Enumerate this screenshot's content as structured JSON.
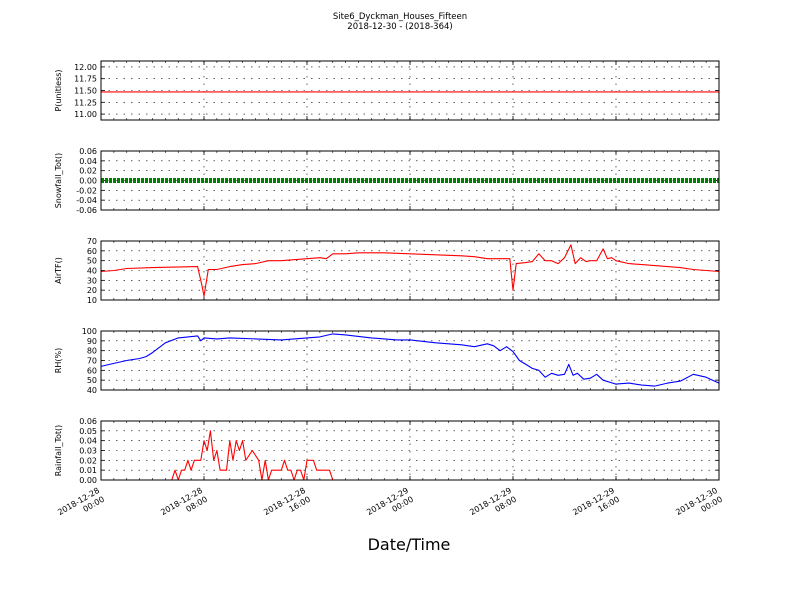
{
  "figure": {
    "title_line1": "Site6_Dyckman_Houses_Fifteen",
    "title_line2": "2018-12-30 - (2018-364)",
    "xlabel": "Date/Time"
  },
  "chart_data": {
    "type": "line",
    "x_range": [
      "2018-12-28 00:00",
      "2018-12-30 00:00"
    ],
    "x_ticks": [
      {
        "time": "2018-12-28 00:00",
        "line1": "2018-12-28",
        "line2": "00:00"
      },
      {
        "time": "2018-12-28 08:00",
        "line1": "2018-12-28",
        "line2": "08:00"
      },
      {
        "time": "2018-12-28 16:00",
        "line1": "2018-12-28",
        "line2": "16:00"
      },
      {
        "time": "2018-12-29 00:00",
        "line1": "2018-12-29",
        "line2": "00:00"
      },
      {
        "time": "2018-12-29 08:00",
        "line1": "2018-12-29",
        "line2": "08:00"
      },
      {
        "time": "2018-12-29 16:00",
        "line1": "2018-12-29",
        "line2": "16:00"
      },
      {
        "time": "2018-12-30 00:00",
        "line1": "2018-12-30",
        "line2": "00:00"
      }
    ],
    "grid": true,
    "panels": [
      {
        "ylabel": "P(unitless)",
        "ylim": [
          10.875,
          12.125
        ],
        "y_ticks": [
          "12.00",
          "11.75",
          "11.50",
          "11.25",
          "11.00"
        ],
        "y_tick_values": [
          12.0,
          11.75,
          11.5,
          11.25,
          11.0
        ],
        "color": "#ff0000",
        "style": "line",
        "points": [
          [
            "2018-12-28 00:00",
            11.47
          ],
          [
            "2018-12-30 00:00",
            11.47
          ]
        ]
      },
      {
        "ylabel": "Snowfall_Tot()",
        "ylim": [
          -0.06,
          0.06
        ],
        "y_ticks": [
          "0.06",
          "0.04",
          "0.02",
          "0.00",
          "-0.02",
          "-0.04",
          "-0.06"
        ],
        "y_tick_values": [
          0.06,
          0.04,
          0.02,
          0.0,
          -0.02,
          -0.04,
          -0.06
        ],
        "color": "#008000",
        "style": "markers",
        "points": [
          [
            "2018-12-28 00:00",
            0.0
          ],
          [
            "2018-12-30 00:00",
            0.0
          ]
        ]
      },
      {
        "ylabel": "AirTF()",
        "ylim": [
          10,
          70
        ],
        "y_ticks": [
          "70",
          "60",
          "50",
          "40",
          "30",
          "20",
          "10"
        ],
        "y_tick_values": [
          70,
          60,
          50,
          40,
          30,
          20,
          10
        ],
        "color": "#ff0000",
        "style": "line",
        "points": [
          [
            "2018-12-28 00:00",
            39
          ],
          [
            "2018-12-28 01:00",
            40
          ],
          [
            "2018-12-28 02:00",
            42
          ],
          [
            "2018-12-28 04:00",
            43
          ],
          [
            "2018-12-28 07:30",
            44
          ],
          [
            "2018-12-28 07:50",
            25
          ],
          [
            "2018-12-28 08:00",
            14
          ],
          [
            "2018-12-28 08:20",
            41
          ],
          [
            "2018-12-28 09:00",
            41
          ],
          [
            "2018-12-28 10:00",
            44
          ],
          [
            "2018-12-28 11:00",
            46
          ],
          [
            "2018-12-28 12:00",
            47
          ],
          [
            "2018-12-28 13:00",
            50
          ],
          [
            "2018-12-28 14:00",
            50
          ],
          [
            "2018-12-28 15:00",
            51
          ],
          [
            "2018-12-28 16:00",
            52
          ],
          [
            "2018-12-28 17:00",
            53
          ],
          [
            "2018-12-28 17:30",
            52
          ],
          [
            "2018-12-28 18:00",
            57
          ],
          [
            "2018-12-28 19:00",
            57
          ],
          [
            "2018-12-28 20:00",
            58
          ],
          [
            "2018-12-28 22:00",
            58
          ],
          [
            "2018-12-29 00:00",
            57
          ],
          [
            "2018-12-29 02:00",
            56
          ],
          [
            "2018-12-29 04:00",
            55
          ],
          [
            "2018-12-29 05:00",
            54
          ],
          [
            "2018-12-29 06:00",
            52
          ],
          [
            "2018-12-29 07:45",
            52
          ],
          [
            "2018-12-29 08:00",
            20
          ],
          [
            "2018-12-29 08:15",
            47
          ],
          [
            "2018-12-29 09:00",
            48
          ],
          [
            "2018-12-29 09:30",
            49
          ],
          [
            "2018-12-29 10:00",
            57
          ],
          [
            "2018-12-29 10:30",
            50
          ],
          [
            "2018-12-29 11:00",
            50
          ],
          [
            "2018-12-29 11:30",
            47
          ],
          [
            "2018-12-29 12:00",
            53
          ],
          [
            "2018-12-29 12:30",
            66
          ],
          [
            "2018-12-29 12:50",
            47
          ],
          [
            "2018-12-29 13:15",
            53
          ],
          [
            "2018-12-29 13:40",
            49
          ],
          [
            "2018-12-29 14:00",
            50
          ],
          [
            "2018-12-29 14:30",
            50
          ],
          [
            "2018-12-29 15:00",
            62
          ],
          [
            "2018-12-29 15:20",
            52
          ],
          [
            "2018-12-29 15:40",
            53
          ],
          [
            "2018-12-29 16:00",
            50
          ],
          [
            "2018-12-29 17:00",
            47
          ],
          [
            "2018-12-29 18:00",
            46
          ],
          [
            "2018-12-29 19:00",
            45
          ],
          [
            "2018-12-29 20:00",
            44
          ],
          [
            "2018-12-29 21:00",
            43
          ],
          [
            "2018-12-29 22:00",
            41
          ],
          [
            "2018-12-29 23:00",
            40
          ],
          [
            "2018-12-30 00:00",
            39
          ]
        ]
      },
      {
        "ylabel": "RH(%)",
        "ylim": [
          40,
          100
        ],
        "y_ticks": [
          "100",
          "90",
          "80",
          "70",
          "60",
          "50",
          "40"
        ],
        "y_tick_values": [
          100,
          90,
          80,
          70,
          60,
          50,
          40
        ],
        "color": "#0000ff",
        "style": "line",
        "points": [
          [
            "2018-12-28 00:00",
            64
          ],
          [
            "2018-12-28 01:00",
            67
          ],
          [
            "2018-12-28 02:00",
            70
          ],
          [
            "2018-12-28 03:00",
            72
          ],
          [
            "2018-12-28 03:30",
            74
          ],
          [
            "2018-12-28 04:00",
            78
          ],
          [
            "2018-12-28 05:00",
            88
          ],
          [
            "2018-12-28 06:00",
            93
          ],
          [
            "2018-12-28 07:30",
            95
          ],
          [
            "2018-12-28 07:45",
            90
          ],
          [
            "2018-12-28 08:00",
            93
          ],
          [
            "2018-12-28 09:00",
            92
          ],
          [
            "2018-12-28 10:00",
            93
          ],
          [
            "2018-12-28 12:00",
            92
          ],
          [
            "2018-12-28 14:00",
            91
          ],
          [
            "2018-12-28 16:00",
            93
          ],
          [
            "2018-12-28 17:00",
            94
          ],
          [
            "2018-12-28 18:00",
            97
          ],
          [
            "2018-12-28 19:00",
            96
          ],
          [
            "2018-12-28 21:00",
            93
          ],
          [
            "2018-12-28 23:00",
            91
          ],
          [
            "2018-12-29 00:00",
            91
          ],
          [
            "2018-12-29 02:00",
            88
          ],
          [
            "2018-12-29 04:00",
            86
          ],
          [
            "2018-12-29 05:00",
            84
          ],
          [
            "2018-12-29 06:00",
            87
          ],
          [
            "2018-12-29 06:30",
            85
          ],
          [
            "2018-12-29 07:00",
            80
          ],
          [
            "2018-12-29 07:30",
            84
          ],
          [
            "2018-12-29 08:00",
            79
          ],
          [
            "2018-12-29 08:30",
            70
          ],
          [
            "2018-12-29 09:00",
            66
          ],
          [
            "2018-12-29 09:30",
            62
          ],
          [
            "2018-12-29 10:00",
            60
          ],
          [
            "2018-12-29 10:30",
            53
          ],
          [
            "2018-12-29 11:00",
            57
          ],
          [
            "2018-12-29 11:30",
            55
          ],
          [
            "2018-12-29 12:00",
            56
          ],
          [
            "2018-12-29 12:20",
            66
          ],
          [
            "2018-12-29 12:40",
            55
          ],
          [
            "2018-12-29 13:00",
            57
          ],
          [
            "2018-12-29 13:30",
            51
          ],
          [
            "2018-12-29 14:00",
            52
          ],
          [
            "2018-12-29 14:30",
            56
          ],
          [
            "2018-12-29 15:00",
            50
          ],
          [
            "2018-12-29 16:00",
            46
          ],
          [
            "2018-12-29 17:00",
            47
          ],
          [
            "2018-12-29 18:00",
            45
          ],
          [
            "2018-12-29 19:00",
            44
          ],
          [
            "2018-12-29 20:00",
            47
          ],
          [
            "2018-12-29 21:00",
            49
          ],
          [
            "2018-12-29 22:00",
            56
          ],
          [
            "2018-12-29 23:00",
            53
          ],
          [
            "2018-12-29 23:30",
            50
          ],
          [
            "2018-12-30 00:00",
            47
          ]
        ]
      },
      {
        "ylabel": "Rainfall_Tot()",
        "ylim": [
          0,
          0.06
        ],
        "y_ticks": [
          "0.06",
          "0.05",
          "0.04",
          "0.03",
          "0.02",
          "0.01",
          "0.00"
        ],
        "y_tick_values": [
          0.06,
          0.05,
          0.04,
          0.03,
          0.02,
          0.01,
          0.0
        ],
        "color": "#ff0000",
        "style": "line",
        "points": [
          [
            "2018-12-28 00:00",
            0
          ],
          [
            "2018-12-28 05:30",
            0
          ],
          [
            "2018-12-28 05:45",
            0.01
          ],
          [
            "2018-12-28 06:00",
            0
          ],
          [
            "2018-12-28 06:15",
            0.01
          ],
          [
            "2018-12-28 06:30",
            0.01
          ],
          [
            "2018-12-28 06:45",
            0.02
          ],
          [
            "2018-12-28 07:00",
            0.01
          ],
          [
            "2018-12-28 07:15",
            0.02
          ],
          [
            "2018-12-28 07:45",
            0.02
          ],
          [
            "2018-12-28 08:00",
            0.04
          ],
          [
            "2018-12-28 08:15",
            0.03
          ],
          [
            "2018-12-28 08:30",
            0.05
          ],
          [
            "2018-12-28 08:45",
            0.02
          ],
          [
            "2018-12-28 09:00",
            0.03
          ],
          [
            "2018-12-28 09:15",
            0.01
          ],
          [
            "2018-12-28 09:45",
            0.01
          ],
          [
            "2018-12-28 10:00",
            0.04
          ],
          [
            "2018-12-28 10:15",
            0.02
          ],
          [
            "2018-12-28 10:30",
            0.04
          ],
          [
            "2018-12-28 10:45",
            0.03
          ],
          [
            "2018-12-28 11:00",
            0.04
          ],
          [
            "2018-12-28 11:15",
            0.02
          ],
          [
            "2018-12-28 11:45",
            0.03
          ],
          [
            "2018-12-28 12:15",
            0.02
          ],
          [
            "2018-12-28 12:30",
            0
          ],
          [
            "2018-12-28 12:45",
            0.02
          ],
          [
            "2018-12-28 13:00",
            0
          ],
          [
            "2018-12-28 13:15",
            0.01
          ],
          [
            "2018-12-28 14:00",
            0.01
          ],
          [
            "2018-12-28 14:15",
            0.02
          ],
          [
            "2018-12-28 14:30",
            0.01
          ],
          [
            "2018-12-28 14:45",
            0.01
          ],
          [
            "2018-12-28 15:00",
            0
          ],
          [
            "2018-12-28 15:15",
            0.01
          ],
          [
            "2018-12-28 15:30",
            0.01
          ],
          [
            "2018-12-28 15:45",
            0
          ],
          [
            "2018-12-28 16:00",
            0.02
          ],
          [
            "2018-12-28 16:30",
            0.02
          ],
          [
            "2018-12-28 16:45",
            0.01
          ],
          [
            "2018-12-28 17:45",
            0.01
          ],
          [
            "2018-12-28 18:00",
            0
          ],
          [
            "2018-12-30 00:00",
            0
          ]
        ]
      }
    ]
  }
}
